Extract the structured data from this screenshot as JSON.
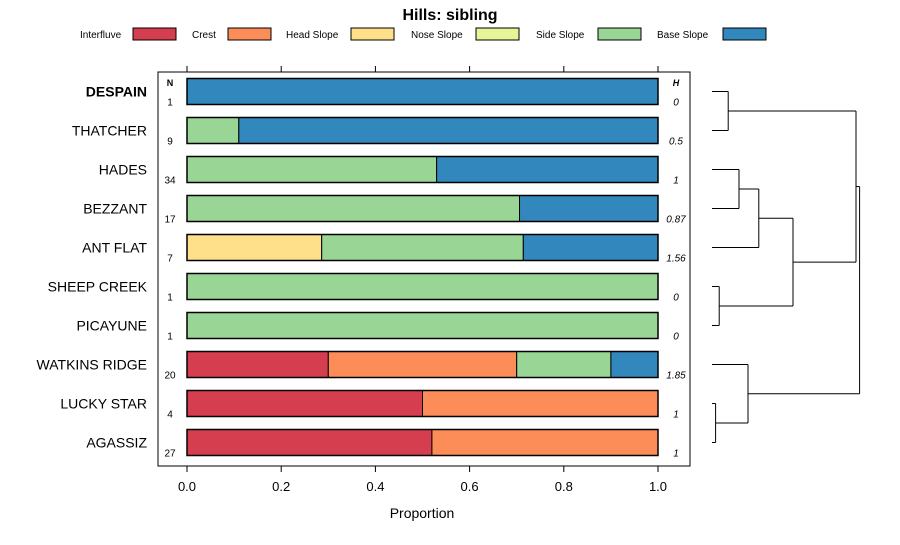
{
  "chart_data": {
    "type": "bar",
    "orientation": "horizontal",
    "stacked": true,
    "title": "Hills: sibling",
    "xlabel": "Proportion",
    "xlim": [
      0,
      1
    ],
    "xticks": [
      0,
      0.2,
      0.4,
      0.6,
      0.8,
      1
    ],
    "xtick_labels": [
      "0.0",
      "0.2",
      "0.4",
      "0.6",
      "0.8",
      "1.0"
    ],
    "n_header": "N",
    "h_header": "H",
    "legend": [
      {
        "label": "Interfluve",
        "color": "#D53E4F"
      },
      {
        "label": "Crest",
        "color": "#FC8D59"
      },
      {
        "label": "Head Slope",
        "color": "#FEE08B"
      },
      {
        "label": "Nose Slope",
        "color": "#E6F598"
      },
      {
        "label": "Side Slope",
        "color": "#99D594"
      },
      {
        "label": "Base Slope",
        "color": "#3288BD"
      }
    ],
    "legend_position": "top",
    "categories": [
      "DESPAIN",
      "THATCHER",
      "HADES",
      "BEZZANT",
      "ANT FLAT",
      "SHEEP CREEK",
      "PICAYUNE",
      "WATKINS RIDGE",
      "LUCKY STAR",
      "AGASSIZ"
    ],
    "highlight": "DESPAIN",
    "n": [
      "1",
      "9",
      "34",
      "17",
      "7",
      "1",
      "1",
      "20",
      "4",
      "27"
    ],
    "h": [
      "0",
      "0.5",
      "1",
      "0.87",
      "1.56",
      "0",
      "0",
      "1.85",
      "1",
      "1"
    ],
    "series": [
      {
        "name": "Interfluve",
        "values": [
          0,
          0,
          0,
          0,
          0,
          0,
          0,
          0.3,
          0.5,
          0.52
        ]
      },
      {
        "name": "Crest",
        "values": [
          0,
          0,
          0,
          0,
          0,
          0,
          0,
          0.4,
          0.5,
          0.48
        ]
      },
      {
        "name": "Head Slope",
        "values": [
          0,
          0,
          0,
          0,
          0.286,
          0,
          0,
          0,
          0,
          0
        ]
      },
      {
        "name": "Nose Slope",
        "values": [
          0,
          0,
          0,
          0,
          0,
          0,
          0,
          0,
          0,
          0
        ]
      },
      {
        "name": "Side Slope",
        "values": [
          0,
          0.11,
          0.53,
          0.706,
          0.428,
          1,
          1,
          0.2,
          0,
          0
        ]
      },
      {
        "name": "Base Slope",
        "values": [
          1,
          0.89,
          0.47,
          0.294,
          0.286,
          0,
          0,
          0.1,
          0,
          0
        ]
      }
    ],
    "dendrogram": {
      "merges": [
        {
          "a": "DESPAIN",
          "b": "THATCHER",
          "height": 0.09
        },
        {
          "a": "HADES",
          "b": "BEZZANT",
          "height": 0.15
        },
        {
          "a": "HADES+BEZZANT",
          "b": "ANT FLAT",
          "height": 0.26
        },
        {
          "a": "SHEEP CREEK",
          "b": "PICAYUNE",
          "height": 0.04
        },
        {
          "a": "HADES+BEZZANT+ANT FLAT",
          "b": "SHEEP CREEK+PICAYUNE",
          "height": 0.45
        },
        {
          "a": "DESPAIN+THATCHER",
          "b": "HADES+BEZZANT+ANT FLAT+SHEEP CREEK+PICAYUNE",
          "height": 0.8
        },
        {
          "a": "LUCKY STAR",
          "b": "AGASSIZ",
          "height": 0.02
        },
        {
          "a": "WATKINS RIDGE",
          "b": "LUCKY STAR+AGASSIZ",
          "height": 0.2
        },
        {
          "a": "ALL_UPPER",
          "b": "WATKINS RIDGE+LUCKY STAR+AGASSIZ",
          "height": 0.82
        }
      ]
    }
  }
}
